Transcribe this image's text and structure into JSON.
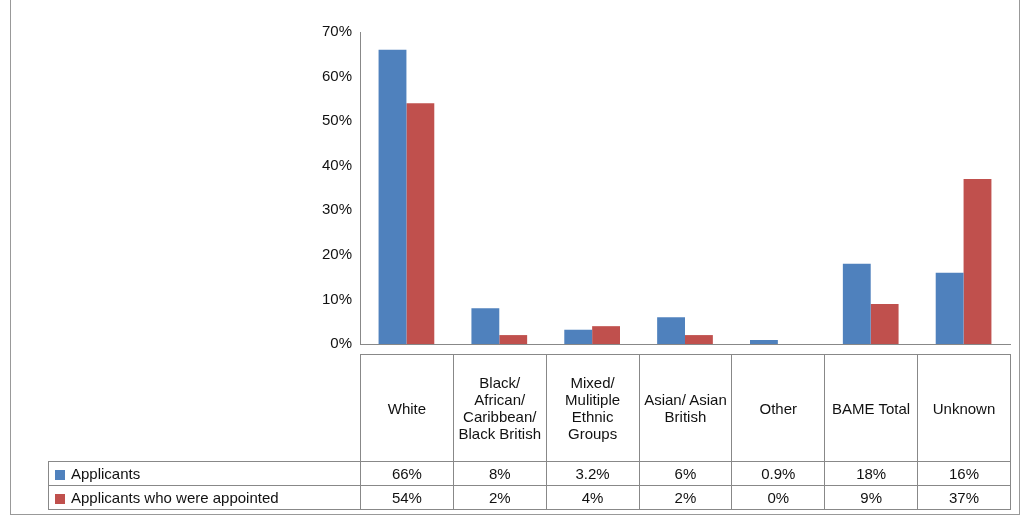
{
  "chart_data": {
    "type": "bar",
    "categories": [
      "White",
      "Black/ African/ Caribbean/ Black British",
      "Mixed/ Mulitiple Ethnic Groups",
      "Asian/ Asian British",
      "Other",
      "BAME Total",
      "Unknown"
    ],
    "series": [
      {
        "name": "Applicants",
        "color": "#4f81bd",
        "values": [
          66,
          8,
          3.2,
          6,
          0.9,
          18,
          16
        ],
        "value_labels": [
          "66%",
          "8%",
          "3.2%",
          "6%",
          "0.9%",
          "18%",
          "16%"
        ]
      },
      {
        "name": "Applicants who were appointed",
        "color": "#c0504d",
        "values": [
          54,
          2,
          4,
          2,
          0,
          9,
          37
        ],
        "value_labels": [
          "54%",
          "2%",
          "4%",
          "2%",
          "0%",
          "9%",
          "37%"
        ]
      }
    ],
    "ylim": [
      0,
      70
    ],
    "yticks": [
      {
        "value": 0,
        "label": "0%"
      },
      {
        "value": 10,
        "label": "10%"
      },
      {
        "value": 20,
        "label": "20%"
      },
      {
        "value": 30,
        "label": "30%"
      },
      {
        "value": 40,
        "label": "40%"
      },
      {
        "value": 50,
        "label": "50%"
      },
      {
        "value": 60,
        "label": "60%"
      },
      {
        "value": 70,
        "label": "70%"
      }
    ],
    "legend": "bottom left"
  }
}
